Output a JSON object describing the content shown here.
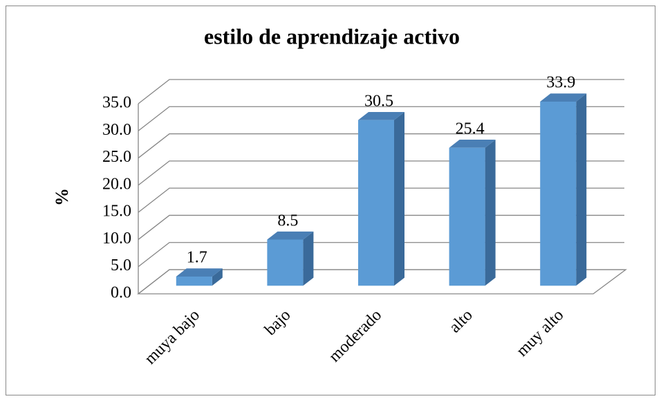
{
  "chart_data": {
    "type": "bar3d",
    "title": "estilo de aprendizaje activo",
    "y_label": "%",
    "categories": [
      "muya bajo",
      "bajo",
      "moderado",
      "alto",
      "muy alto"
    ],
    "values": [
      1.7,
      8.5,
      30.5,
      25.4,
      33.9
    ],
    "color": "#5b9bd5",
    "ylim": [
      0,
      35
    ],
    "yticks": [
      {
        "value": 0,
        "label": "0.0"
      },
      {
        "value": 5,
        "label": "5.0"
      },
      {
        "value": 10,
        "label": "10.0"
      },
      {
        "value": 15,
        "label": "15.0"
      },
      {
        "value": 20,
        "label": "20.0"
      },
      {
        "value": 25,
        "label": "25.0"
      },
      {
        "value": 30,
        "label": "30.0"
      },
      {
        "value": 35,
        "label": "35.0"
      }
    ],
    "grid": true
  }
}
